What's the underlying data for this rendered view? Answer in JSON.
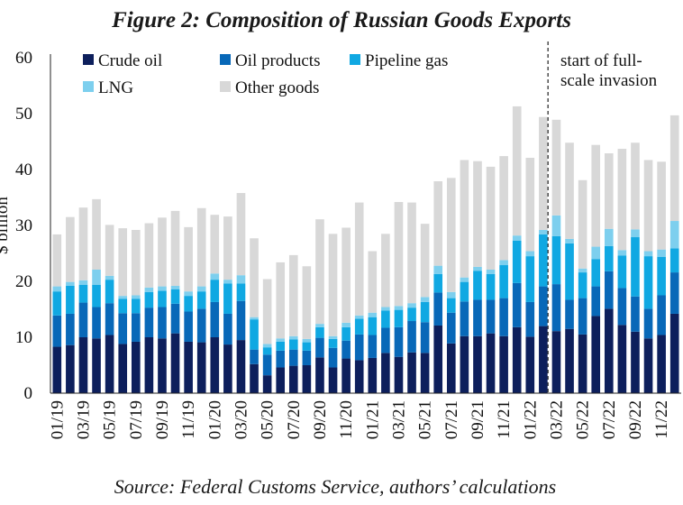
{
  "chart_data": {
    "type": "bar",
    "stacked": true,
    "title": "Figure 2: Composition of Russian Goods Exports",
    "ylabel": "$ billion",
    "xlabel": "",
    "ylim": [
      0,
      60
    ],
    "yticks": [
      0,
      10,
      20,
      30,
      40,
      50,
      60
    ],
    "grid": false,
    "legend_position": "top-left",
    "source": "Source: Federal Customs Service, authors’ calculations",
    "annotation": {
      "text_lines": [
        "start of full-",
        "scale invasion"
      ],
      "at_category": "03/22",
      "style": "dashed vertical line"
    },
    "tick_labels": [
      "01/19",
      "03/19",
      "05/19",
      "07/19",
      "09/19",
      "11/19",
      "01/20",
      "03/20",
      "05/20",
      "07/20",
      "09/20",
      "11/20",
      "01/21",
      "03/21",
      "05/21",
      "07/21",
      "09/21",
      "11/21",
      "01/22",
      "03/22",
      "05/22",
      "07/22",
      "09/22",
      "11/22"
    ],
    "categories": [
      "01/19",
      "02/19",
      "03/19",
      "04/19",
      "05/19",
      "06/19",
      "07/19",
      "08/19",
      "09/19",
      "10/19",
      "11/19",
      "12/19",
      "01/20",
      "02/20",
      "03/20",
      "04/20",
      "05/20",
      "06/20",
      "07/20",
      "08/20",
      "09/20",
      "10/20",
      "11/20",
      "12/20",
      "01/21",
      "02/21",
      "03/21",
      "04/21",
      "05/21",
      "06/21",
      "07/21",
      "08/21",
      "09/21",
      "10/21",
      "11/21",
      "12/21",
      "01/22",
      "02/22",
      "03/22",
      "04/22",
      "05/22",
      "06/22",
      "07/22",
      "08/22",
      "09/22",
      "10/22",
      "11/22",
      "12/22"
    ],
    "series": [
      {
        "name": "Crude oil",
        "color": "#0d1f5c",
        "values": [
          8.3,
          8.6,
          10.0,
          9.8,
          10.4,
          8.8,
          9.2,
          10.0,
          9.8,
          10.7,
          9.2,
          9.1,
          10.0,
          8.7,
          9.5,
          5.2,
          3.2,
          4.6,
          4.9,
          5.0,
          6.4,
          4.6,
          6.2,
          5.9,
          6.3,
          7.2,
          6.5,
          7.3,
          7.2,
          12.1,
          8.9,
          10.2,
          10.2,
          10.7,
          10.2,
          11.8,
          10.1,
          12.0,
          11.1,
          11.5,
          10.5,
          13.8,
          15.1,
          12.2,
          11.0,
          9.8,
          10.4,
          14.2
        ]
      },
      {
        "name": "Oil products",
        "color": "#0868b8",
        "values": [
          5.6,
          5.6,
          6.2,
          5.6,
          5.7,
          5.5,
          5.1,
          5.3,
          5.6,
          5.3,
          5.4,
          6.0,
          6.3,
          5.5,
          7.0,
          2.6,
          3.7,
          3.0,
          2.9,
          2.6,
          3.5,
          3.5,
          3.2,
          4.6,
          4.1,
          4.5,
          5.3,
          5.6,
          5.5,
          5.9,
          5.5,
          6.2,
          6.5,
          6.0,
          6.8,
          7.9,
          6.2,
          7.1,
          8.4,
          5.2,
          6.5,
          5.3,
          6.7,
          6.6,
          6.3,
          5.3,
          7.1,
          7.4
        ]
      },
      {
        "name": "Pipeline gas",
        "color": "#10a8e2",
        "values": [
          4.3,
          5.0,
          3.2,
          4.0,
          4.2,
          2.6,
          2.6,
          2.8,
          2.9,
          2.6,
          2.8,
          3.1,
          4.0,
          5.4,
          3.1,
          5.4,
          1.3,
          1.6,
          1.8,
          1.5,
          1.9,
          1.6,
          2.4,
          2.8,
          3.2,
          3.1,
          3.1,
          2.4,
          3.6,
          3.3,
          2.6,
          3.5,
          5.2,
          4.6,
          5.9,
          7.6,
          8.2,
          9.3,
          8.6,
          10.1,
          4.6,
          4.9,
          4.5,
          5.8,
          10.6,
          9.4,
          6.9,
          4.3
        ]
      },
      {
        "name": "LNG",
        "color": "#7dcfee",
        "values": [
          0.9,
          0.7,
          0.8,
          2.7,
          0.7,
          0.5,
          0.6,
          0.8,
          0.8,
          0.6,
          0.8,
          0.9,
          1.1,
          0.7,
          1.5,
          0.4,
          0.6,
          0.6,
          0.6,
          0.6,
          0.6,
          0.5,
          0.8,
          0.6,
          0.8,
          0.6,
          0.7,
          0.8,
          0.9,
          1.5,
          1.1,
          0.8,
          0.7,
          0.8,
          0.9,
          0.9,
          0.9,
          0.8,
          3.7,
          0.8,
          0.7,
          2.2,
          3.1,
          1.0,
          1.4,
          0.9,
          1.3,
          4.9
        ]
      },
      {
        "name": "Other goods",
        "color": "#d8d8d8",
        "values": [
          9.3,
          11.6,
          13.0,
          12.6,
          9.1,
          12.1,
          11.7,
          11.5,
          12.3,
          13.4,
          11.5,
          14.0,
          10.5,
          11.3,
          14.7,
          14.1,
          11.6,
          13.6,
          14.5,
          13.0,
          18.7,
          18.3,
          17.0,
          20.2,
          11.0,
          13.1,
          18.6,
          18.0,
          13.1,
          15.1,
          20.4,
          21.0,
          18.9,
          18.4,
          18.6,
          23.1,
          16.7,
          20.2,
          17.1,
          17.2,
          15.8,
          18.2,
          13.5,
          18.1,
          15.5,
          16.3,
          15.7,
          18.9
        ]
      }
    ]
  }
}
